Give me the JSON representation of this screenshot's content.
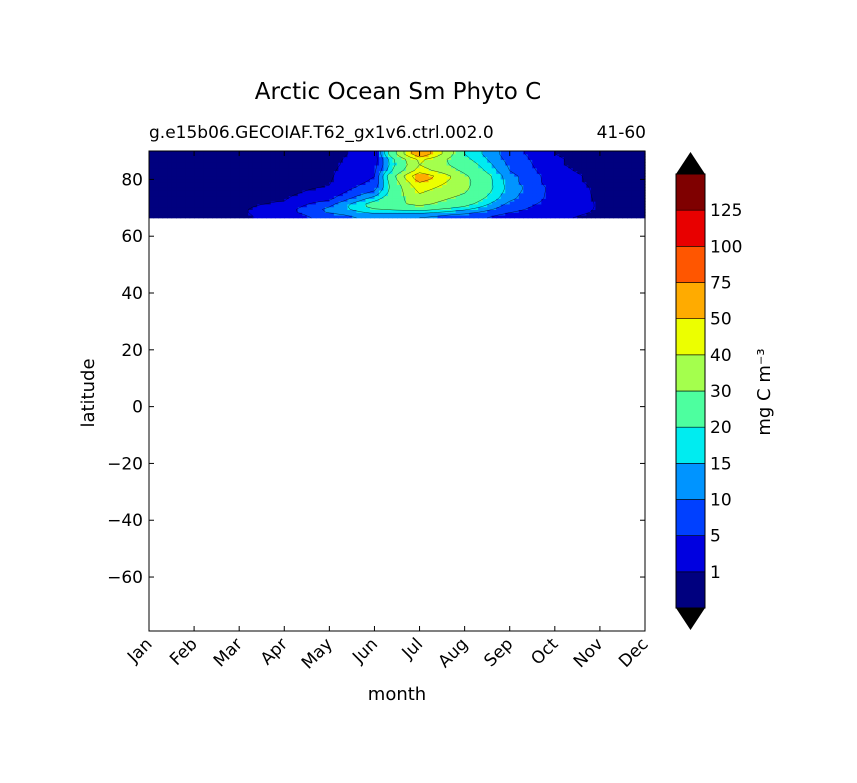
{
  "chart_data": {
    "type": "heatmap",
    "title": "Arctic Ocean Sm Phyto C",
    "subtitle_left": "g.e15b06.GECOIAF.T62_gx1v6.ctrl.002.0",
    "subtitle_right": "41-60",
    "xlabel": "month",
    "ylabel": "latitude",
    "colorbar_label": "mg C m⁻³",
    "x_categories": [
      "Jan",
      "Feb",
      "Mar",
      "Apr",
      "May",
      "Jun",
      "Jul",
      "Aug",
      "Sep",
      "Oct",
      "Nov",
      "Dec"
    ],
    "xlim": [
      0,
      11
    ],
    "ylim": [
      -79,
      90
    ],
    "y_ticks": [
      -60,
      -40,
      -20,
      0,
      20,
      40,
      60,
      80
    ],
    "y_tick_labels": [
      "−60",
      "−40",
      "−20",
      "0",
      "20",
      "40",
      "60",
      "80"
    ],
    "data_lat_range": [
      66.5,
      90
    ],
    "levels": [
      0,
      1,
      5,
      10,
      15,
      20,
      30,
      40,
      50,
      75,
      100,
      125,
      150
    ],
    "level_labels": [
      "1",
      "5",
      "10",
      "15",
      "20",
      "30",
      "40",
      "50",
      "75",
      "100",
      "125"
    ],
    "level_colors": [
      "#00007f",
      "#0000e0",
      "#0040ff",
      "#0094ff",
      "#00ecf0",
      "#4dff9f",
      "#a4ff4d",
      "#ecff00",
      "#ffab00",
      "#ff5600",
      "#e80000",
      "#7f0000"
    ],
    "extend_colors": {
      "min": "#000000",
      "max": "#000000"
    },
    "grid": false,
    "latitudes": [
      67,
      69,
      71,
      73,
      75,
      77,
      79,
      81,
      83,
      85,
      87,
      89
    ],
    "values": [
      [
        0.5,
        0.5,
        0.5,
        2,
        7,
        12,
        10,
        7,
        3,
        1.2,
        0.7,
        0.5
      ],
      [
        0.5,
        0.5,
        0.6,
        3,
        12,
        18,
        20,
        14,
        6,
        2,
        0.8,
        0.5
      ],
      [
        0.4,
        0.4,
        0.5,
        1.5,
        9,
        24,
        32,
        22,
        8,
        2.5,
        0.8,
        0.5
      ],
      [
        0.4,
        0.4,
        0.4,
        0.8,
        4,
        18,
        36,
        26,
        11,
        3,
        0.6,
        0.4
      ],
      [
        0.3,
        0.3,
        0.3,
        0.5,
        2,
        12,
        40,
        30,
        12,
        3,
        0.5,
        0.3
      ],
      [
        0.3,
        0.3,
        0.3,
        0.4,
        1.2,
        8,
        44,
        32,
        13,
        3,
        0.4,
        0.3
      ],
      [
        0.3,
        0.3,
        0.3,
        0.3,
        0.8,
        6,
        50,
        33,
        12,
        2,
        0.4,
        0.3
      ],
      [
        0.3,
        0.3,
        0.3,
        0.3,
        0.6,
        5,
        60,
        32,
        12,
        2,
        0.4,
        0.3
      ],
      [
        0.3,
        0.3,
        0.3,
        0.3,
        0.5,
        4,
        45,
        28,
        10,
        1.5,
        0.3,
        0.3
      ],
      [
        0.3,
        0.3,
        0.3,
        0.3,
        0.4,
        3,
        40,
        25,
        9,
        1.2,
        0.3,
        0.3
      ],
      [
        0.3,
        0.3,
        0.3,
        0.3,
        0.4,
        2.5,
        42,
        22,
        8,
        1.2,
        0.3,
        0.3
      ],
      [
        0.3,
        0.3,
        0.3,
        0.3,
        0.3,
        2,
        60,
        20,
        7,
        1,
        0.3,
        0.3
      ]
    ]
  }
}
